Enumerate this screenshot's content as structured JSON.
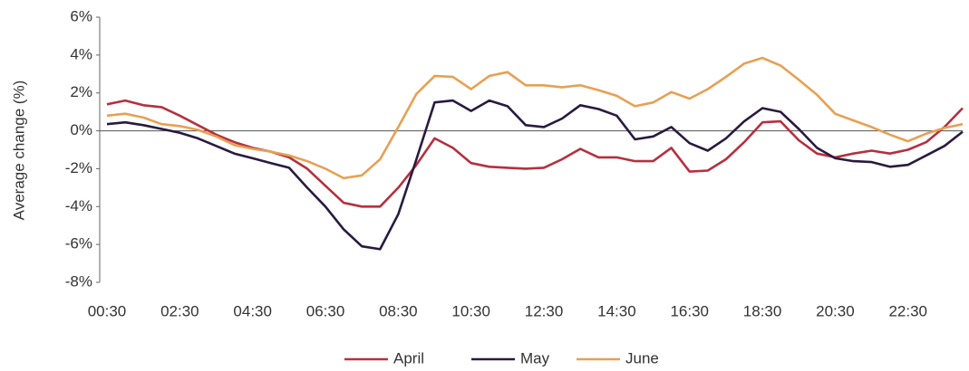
{
  "chart_data": {
    "type": "line",
    "y_label": "Average change (%)",
    "categories": [
      "00:30",
      null,
      null,
      null,
      "02:30",
      null,
      null,
      null,
      "04:30",
      null,
      null,
      null,
      "06:30",
      null,
      null,
      null,
      "08:30",
      null,
      null,
      null,
      "10:30",
      null,
      null,
      null,
      "12:30",
      null,
      null,
      null,
      "14:30",
      null,
      null,
      null,
      "16:30",
      null,
      null,
      null,
      "18:30",
      null,
      null,
      null,
      "20:30",
      null,
      null,
      null,
      "22:30",
      null,
      null,
      null
    ],
    "series": [
      {
        "name": "April",
        "color": "#b5303f",
        "values": [
          1.4,
          1.6,
          1.35,
          1.25,
          0.8,
          0.3,
          -0.2,
          -0.6,
          -0.9,
          -1.1,
          -1.4,
          -2.0,
          -2.9,
          -3.8,
          -4.0,
          -4.0,
          -3.0,
          -1.8,
          -0.4,
          -0.9,
          -1.7,
          -1.9,
          -1.95,
          -2.0,
          -1.95,
          -1.5,
          -0.95,
          -1.4,
          -1.4,
          -1.6,
          -1.6,
          -0.9,
          -2.15,
          -2.1,
          -1.5,
          -0.6,
          0.45,
          0.5,
          -0.5,
          -1.2,
          -1.4,
          -1.2,
          -1.05,
          -1.2,
          -1.0,
          -0.6,
          0.2,
          1.2
        ]
      },
      {
        "name": "May",
        "color": "#2a1a3e",
        "values": [
          0.35,
          0.45,
          0.3,
          0.1,
          -0.1,
          -0.4,
          -0.8,
          -1.2,
          -1.45,
          -1.7,
          -1.95,
          -3.0,
          -4.0,
          -5.2,
          -6.1,
          -6.25,
          -4.4,
          -1.5,
          1.5,
          1.6,
          1.05,
          1.6,
          1.3,
          0.3,
          0.2,
          0.65,
          1.35,
          1.15,
          0.8,
          -0.45,
          -0.3,
          0.2,
          -0.65,
          -1.05,
          -0.4,
          0.5,
          1.2,
          1.0,
          0.1,
          -0.9,
          -1.45,
          -1.6,
          -1.65,
          -1.9,
          -1.8,
          -1.3,
          -0.8,
          -0.05
        ]
      },
      {
        "name": "June",
        "color": "#e8a052",
        "values": [
          0.8,
          0.9,
          0.7,
          0.35,
          0.25,
          0.05,
          -0.3,
          -0.75,
          -0.95,
          -1.1,
          -1.3,
          -1.6,
          -2.0,
          -2.5,
          -2.35,
          -1.5,
          0.2,
          1.95,
          2.9,
          2.85,
          2.2,
          2.9,
          3.1,
          2.4,
          2.4,
          2.3,
          2.4,
          2.15,
          1.85,
          1.3,
          1.5,
          2.05,
          1.7,
          2.2,
          2.85,
          3.55,
          3.85,
          3.45,
          2.7,
          1.9,
          0.9,
          0.55,
          0.2,
          -0.2,
          -0.55,
          -0.15,
          0.15,
          0.35
        ]
      }
    ],
    "ylim": [
      -8,
      6
    ],
    "yticks": [
      {
        "value": 6,
        "label": "6%"
      },
      {
        "value": 4,
        "label": "4%"
      },
      {
        "value": 2,
        "label": "2%"
      },
      {
        "value": 0,
        "label": "0%"
      },
      {
        "value": -2,
        "label": "-2%"
      },
      {
        "value": -4,
        "label": "-4%"
      },
      {
        "value": -6,
        "label": "-6%"
      },
      {
        "value": -8,
        "label": "-8%"
      }
    ],
    "grid": false,
    "legend": "bottom"
  }
}
